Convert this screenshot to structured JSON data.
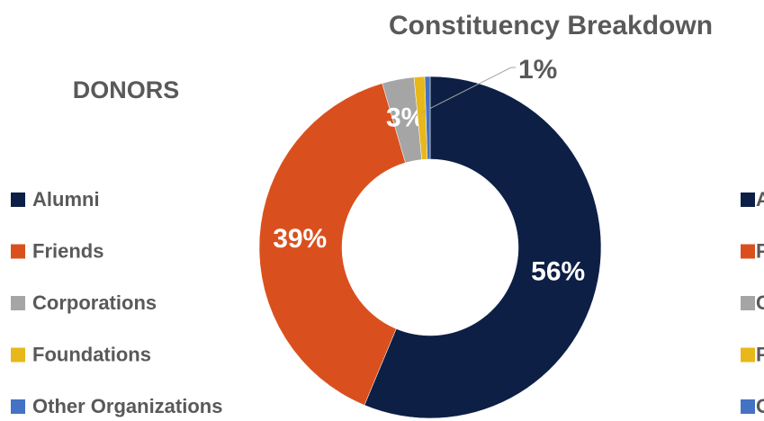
{
  "chart_data": {
    "type": "pie",
    "title": "Constituency Breakdown",
    "subtitle": "DONORS",
    "categories": [
      "Alumni",
      "Friends",
      "Corporations",
      "Foundations",
      "Other Organizations"
    ],
    "values": [
      56,
      39,
      3,
      1,
      0.5
    ],
    "value_labels": [
      "56%",
      "39%",
      "3%",
      "1%",
      null
    ],
    "colors": [
      "#0d1f45",
      "#d9501e",
      "#a5a5a5",
      "#e8b81a",
      "#4472c4"
    ],
    "donut": true
  }
}
